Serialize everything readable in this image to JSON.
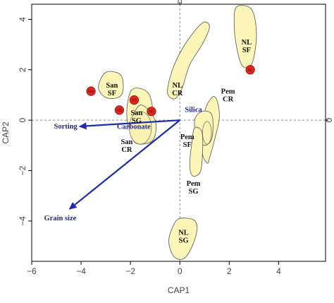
{
  "chart_data": {
    "type": "scatter",
    "xlabel": "CAP1",
    "ylabel": "CAP2",
    "xlim": [
      -6,
      5.9
    ],
    "ylim": [
      -5.6,
      4.6
    ],
    "x_ticks": [
      -6,
      -4,
      -2,
      0,
      2,
      4
    ],
    "y_ticks": [
      -4,
      -2,
      0,
      2,
      4
    ],
    "right_axis_label": "0",
    "top_axis_label": "0",
    "grid": false,
    "reference_lines": {
      "x": 0,
      "y": 0
    },
    "groups": [
      {
        "line1": "San",
        "line2": "SF",
        "label_x": -2.75,
        "label_y": 1.3,
        "hull": [
          [
            -3.0,
            1.9
          ],
          [
            -2.4,
            1.8
          ],
          [
            -2.3,
            1.2
          ],
          [
            -2.5,
            0.9
          ],
          [
            -3.0,
            0.9
          ],
          [
            -3.3,
            1.3
          ]
        ]
      },
      {
        "line1": "San",
        "line2": "SG",
        "label_x": -1.75,
        "label_y": 0.2,
        "hull": [
          [
            -1.95,
            1.2
          ],
          [
            -1.3,
            1.1
          ],
          [
            -1.1,
            0.3
          ],
          [
            -1.3,
            -0.4
          ],
          [
            -1.9,
            -0.6
          ],
          [
            -2.15,
            0.2
          ]
        ]
      },
      {
        "line1": "San",
        "line2": "CR",
        "label_x": -2.15,
        "label_y": -0.95,
        "hull": [
          [
            -1.6,
            0.6
          ],
          [
            -1.0,
            0.0
          ],
          [
            -1.1,
            -0.8
          ],
          [
            -1.8,
            -0.9
          ],
          [
            -2.0,
            -0.2
          ]
        ]
      },
      {
        "line1": "NL",
        "line2": "CR",
        "label_x": -0.1,
        "label_y": 1.3,
        "hull": [
          [
            1.2,
            3.7
          ],
          [
            0.9,
            3.0
          ],
          [
            0.4,
            2.2
          ],
          [
            0.1,
            1.3
          ],
          [
            -0.2,
            0.85
          ],
          [
            -0.5,
            1.1
          ],
          [
            -0.3,
            2.0
          ],
          [
            0.2,
            3.0
          ],
          [
            0.9,
            3.85
          ]
        ]
      },
      {
        "line1": "NL",
        "line2": "SF",
        "label_x": 2.7,
        "label_y": 3.0,
        "hull": [
          [
            2.3,
            4.5
          ],
          [
            2.9,
            4.4
          ],
          [
            3.1,
            3.5
          ],
          [
            3.0,
            2.5
          ],
          [
            2.8,
            2.1
          ],
          [
            2.5,
            2.2
          ],
          [
            2.3,
            2.9
          ],
          [
            2.2,
            3.8
          ]
        ]
      },
      {
        "line1": "Pem",
        "line2": "CR",
        "label_x": 1.95,
        "label_y": 1.05,
        "hull": [
          [
            1.5,
            0.8
          ],
          [
            1.6,
            0.1
          ],
          [
            1.4,
            -0.8
          ],
          [
            1.2,
            -1.5
          ],
          [
            1.1,
            -1.7
          ],
          [
            0.9,
            -1.2
          ],
          [
            1.0,
            0.3
          ],
          [
            1.3,
            0.9
          ]
        ]
      },
      {
        "line1": "Pem",
        "line2": "SF",
        "label_x": 0.3,
        "label_y": -0.75,
        "hull": [
          [
            0.9,
            0.35
          ],
          [
            1.3,
            0.2
          ],
          [
            1.3,
            -0.7
          ],
          [
            1.0,
            -1.0
          ],
          [
            0.7,
            -0.7
          ],
          [
            0.6,
            0.0
          ]
        ]
      },
      {
        "line1": "Pem",
        "line2": "SG",
        "label_x": 0.55,
        "label_y": -2.6,
        "hull": [
          [
            0.6,
            -0.3
          ],
          [
            0.9,
            -0.5
          ],
          [
            0.9,
            -1.6
          ],
          [
            0.8,
            -2.1
          ],
          [
            0.5,
            -2.2
          ],
          [
            0.4,
            -1.7
          ],
          [
            0.5,
            -0.8
          ]
        ]
      },
      {
        "line1": "NL",
        "line2": "SG",
        "label_x": 0.15,
        "label_y": -4.55,
        "hull": [
          [
            0.0,
            -3.9
          ],
          [
            0.55,
            -3.95
          ],
          [
            0.7,
            -4.3
          ],
          [
            0.5,
            -5.0
          ],
          [
            0.15,
            -5.5
          ],
          [
            -0.25,
            -5.4
          ],
          [
            -0.45,
            -4.8
          ],
          [
            -0.25,
            -4.15
          ]
        ]
      }
    ],
    "inner_ellipses": [
      {
        "center": [
          -1.6,
          -0.3
        ],
        "rx": 0.45,
        "ry": 0.65
      },
      {
        "center": [
          1.1,
          -0.5
        ],
        "rx": 0.18,
        "ry": 0.45
      }
    ],
    "outliers": [
      {
        "x": -3.6,
        "y": 1.15,
        "mark": "San"
      },
      {
        "x": -2.45,
        "y": 0.4,
        "mark": "SG"
      },
      {
        "x": -1.85,
        "y": 0.8,
        "mark": "SG"
      },
      {
        "x": -1.15,
        "y": 0.35,
        "mark": "SG"
      },
      {
        "x": 2.85,
        "y": 2.0,
        "mark": "NL"
      }
    ],
    "vectors": [
      {
        "label": "Sorting",
        "x": -4.1,
        "y": -0.25
      },
      {
        "label": "Grain size",
        "x": -4.5,
        "y": -3.55
      },
      {
        "label": "Silica",
        "x": 0,
        "y": 0
      },
      {
        "label": "Carbonate",
        "x": 0,
        "y": 0
      }
    ],
    "vector_labels": [
      {
        "text": "Sorting",
        "x": -5.1,
        "y": -0.33
      },
      {
        "text": "Grain size",
        "x": -5.5,
        "y": -3.97
      },
      {
        "text": "Silica",
        "x": 0.2,
        "y": 0.33
      },
      {
        "text": "Carbonate",
        "x": -2.55,
        "y": -0.35
      }
    ],
    "colors": {
      "hull_fill": "#fbf5b8",
      "vector": "#1d2ab0",
      "outlier": "#e0281e"
    }
  }
}
